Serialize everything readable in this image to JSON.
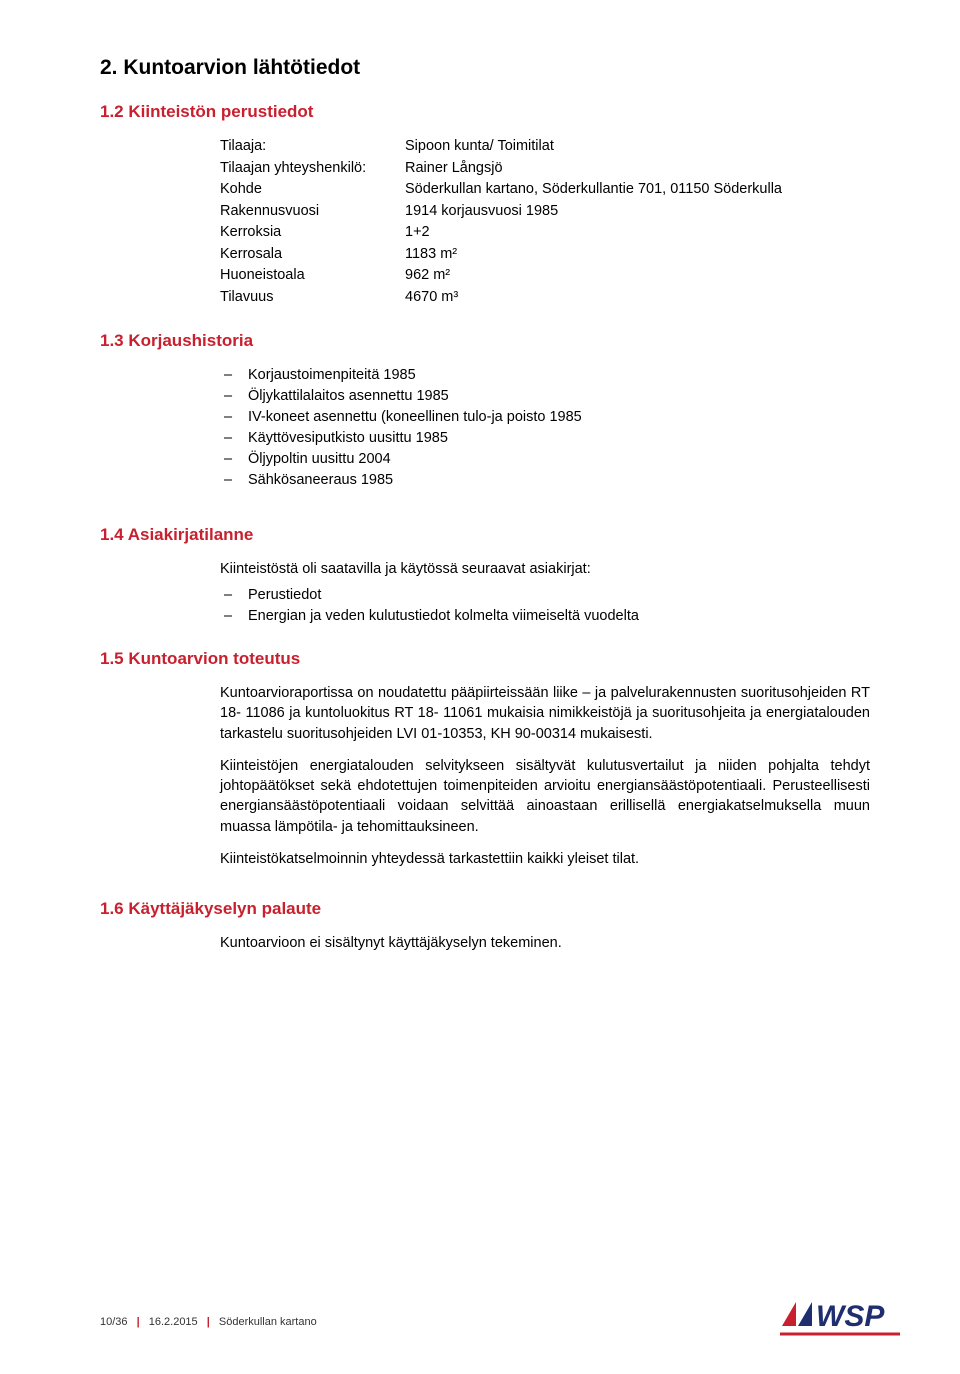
{
  "heading1": "2.  Kuntoarvion lähtötiedot",
  "sections": {
    "s12": {
      "title": "1.2  Kiinteistön perustiedot",
      "kv": [
        {
          "k": "Tilaaja:",
          "v": "Sipoon kunta/ Toimitilat"
        },
        {
          "k": "Tilaajan yhteyshenkilö:",
          "v": "Rainer Långsjö"
        },
        {
          "k": "Kohde",
          "v": "Söderkullan kartano, Söderkullantie 701, 01150 Söderkulla"
        },
        {
          "k": "Rakennusvuosi",
          "v": "1914 korjausvuosi 1985"
        },
        {
          "k": "Kerroksia",
          "v": "1+2"
        },
        {
          "k": "Kerrosala",
          "v": "1183 m²"
        },
        {
          "k": "Huoneistoala",
          "v": "962 m²"
        },
        {
          "k": "Tilavuus",
          "v": "4670 m³"
        }
      ]
    },
    "s13": {
      "title": "1.3  Korjaushistoria",
      "items": [
        "Korjaustoimenpiteitä 1985",
        "Öljykattilalaitos asennettu 1985",
        "IV-koneet asennettu (koneellinen tulo-ja poisto 1985",
        "Käyttövesiputkisto uusittu 1985",
        "Öljypoltin uusittu 2004",
        "Sähkösaneeraus 1985"
      ]
    },
    "s14": {
      "title": "1.4  Asiakirjatilanne",
      "intro": "Kiinteistöstä oli saatavilla ja käytössä seuraavat asiakirjat:",
      "items": [
        "Perustiedot",
        "Energian ja veden kulutustiedot kolmelta viimeiseltä vuodelta"
      ]
    },
    "s15": {
      "title": "1.5  Kuntoarvion toteutus",
      "paras": [
        "Kuntoarvioraportissa on noudatettu pääpiirteissään liike – ja palvelurakennusten suoritusohjeiden RT 18- 11086 ja kuntoluokitus RT 18- 11061 mukaisia nimikkeistöjä ja suoritusohjeita ja energiatalouden tarkastelu suoritusohjeiden LVI 01-10353, KH 90-00314 mukaisesti.",
        "Kiinteistöjen energiatalouden selvitykseen sisältyvät kulutusvertailut ja niiden pohjalta tehdyt johtopäätökset sekä ehdotettujen toimenpiteiden arvioitu energiansäästöpotentiaali. Perusteellisesti energiansäästöpotentiaali voidaan selvittää ainoastaan erillisellä energiakatselmuksella muun muassa lämpötila- ja tehomittauksineen.",
        "Kiinteistökatselmoinnin yhteydessä tarkastettiin kaikki yleiset tilat."
      ]
    },
    "s16": {
      "title": "1.6  Käyttäjäkyselyn palaute",
      "paras": [
        "Kuntoarvioon ei sisältynyt käyttäjäkyselyn tekeminen."
      ]
    }
  },
  "footer": {
    "page": "10/36",
    "date": "16.2.2015",
    "doc": "Söderkullan kartano"
  },
  "colors": {
    "accent": "#c8202f",
    "text": "#000",
    "logo_blue": "#1f2e6e"
  },
  "logo": {
    "text": "WSP",
    "fontsize": 28,
    "italic": true
  }
}
